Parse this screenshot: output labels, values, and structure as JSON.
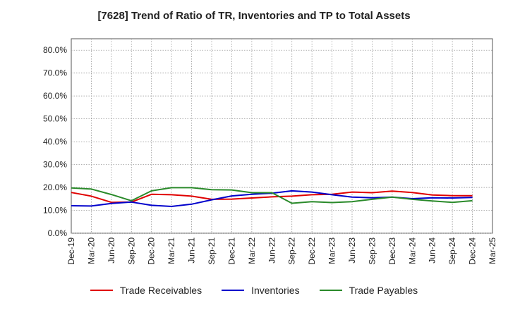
{
  "chart_data": {
    "type": "line",
    "title": "[7628]  Trend of Ratio of TR, Inventories and TP to Total Assets",
    "xlabel": "",
    "ylabel": "",
    "ylim": [
      0,
      85
    ],
    "yticks": [
      "0.0%",
      "10.0%",
      "20.0%",
      "30.0%",
      "40.0%",
      "50.0%",
      "60.0%",
      "70.0%",
      "80.0%"
    ],
    "ytick_values": [
      0,
      10,
      20,
      30,
      40,
      50,
      60,
      70,
      80
    ],
    "categories": [
      "Dec-19",
      "Mar-20",
      "Jun-20",
      "Sep-20",
      "Dec-20",
      "Mar-21",
      "Jun-21",
      "Sep-21",
      "Dec-21",
      "Mar-22",
      "Jun-22",
      "Sep-22",
      "Dec-22",
      "Mar-23",
      "Jun-23",
      "Sep-23",
      "Dec-23",
      "Mar-24",
      "Jun-24",
      "Sep-24",
      "Dec-24",
      "Mar-25"
    ],
    "grid": true,
    "legend_position": "bottom",
    "series": [
      {
        "name": "Trade Receivables",
        "color": "#e00000",
        "values": [
          17.8,
          16.2,
          13.5,
          13.6,
          17.0,
          16.8,
          16.2,
          14.8,
          14.9,
          15.4,
          15.9,
          16.2,
          16.8,
          17.0,
          18.0,
          17.7,
          18.4,
          17.8,
          16.7,
          16.4,
          16.4,
          null
        ]
      },
      {
        "name": "Inventories",
        "color": "#0000cc",
        "values": [
          12.0,
          11.9,
          13.0,
          13.6,
          12.2,
          11.7,
          12.7,
          14.6,
          16.3,
          17.0,
          17.5,
          18.5,
          18.0,
          16.8,
          15.8,
          15.5,
          15.8,
          15.1,
          15.5,
          15.4,
          15.6,
          null
        ]
      },
      {
        "name": "Trade Payables",
        "color": "#2a8a2a",
        "values": [
          19.8,
          19.3,
          16.9,
          14.2,
          18.5,
          19.9,
          19.9,
          19.0,
          18.9,
          17.7,
          17.7,
          13.1,
          13.8,
          13.4,
          13.8,
          14.8,
          15.8,
          14.8,
          14.1,
          13.5,
          14.2,
          null
        ]
      }
    ]
  }
}
